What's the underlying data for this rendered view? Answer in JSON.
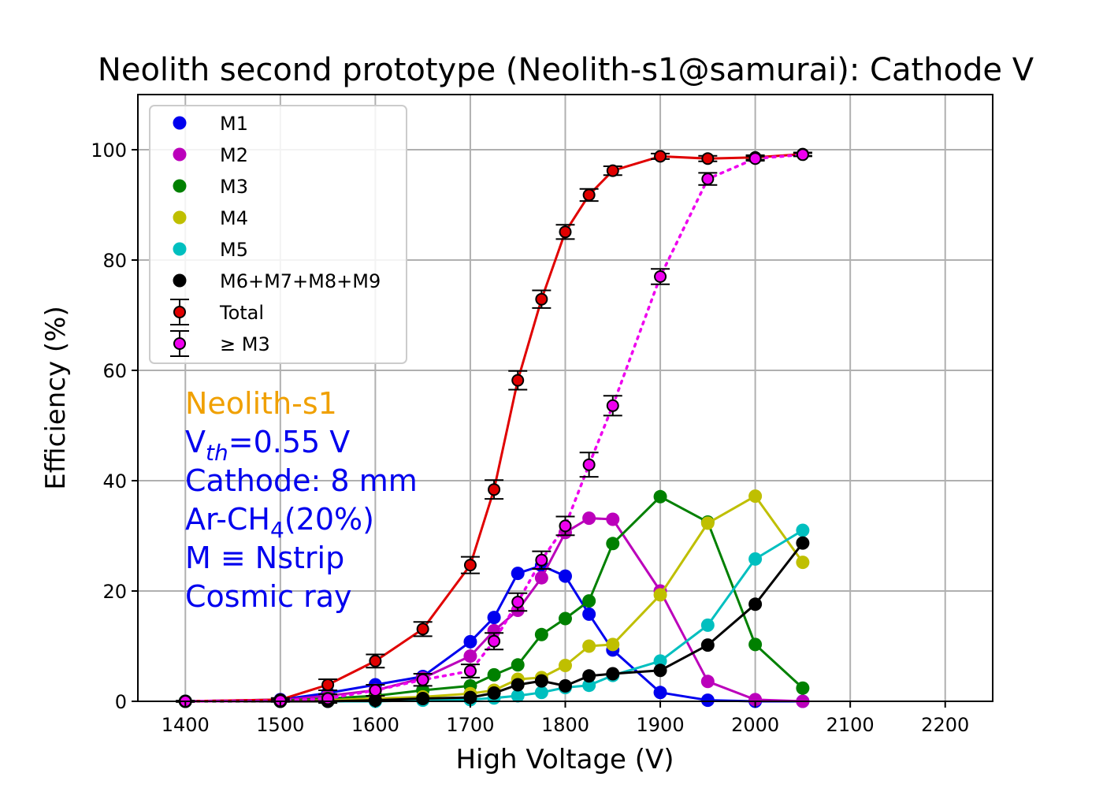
{
  "chart_data": {
    "type": "line",
    "title": "Neolith second prototype (Neolith-s1@samurai): Cathode V",
    "xlabel": "High Voltage (V)",
    "ylabel": "Efficiency (%)",
    "xlim": [
      1350,
      2250
    ],
    "ylim": [
      0,
      110
    ],
    "xticks": [
      1400,
      1500,
      1600,
      1700,
      1800,
      1900,
      2000,
      2100,
      2200
    ],
    "yticks": [
      0,
      20,
      40,
      60,
      80,
      100
    ],
    "grid": true,
    "legend_position": "upper-left",
    "x": [
      1400,
      1500,
      1550,
      1600,
      1650,
      1700,
      1725,
      1750,
      1775,
      1800,
      1825,
      1850,
      1900,
      1950,
      2000,
      2050
    ],
    "series": [
      {
        "name": "M1",
        "color": "#0000ee",
        "style": "solid",
        "errorbars": false,
        "values": [
          0,
          0.3,
          1.5,
          3.0,
          4.5,
          10.8,
          15.2,
          23.2,
          24.6,
          22.7,
          15.8,
          9.3,
          1.6,
          0.2,
          0,
          0
        ]
      },
      {
        "name": "M2",
        "color": "#bb00bb",
        "style": "solid",
        "errorbars": false,
        "values": [
          0,
          0.2,
          1.0,
          2.0,
          4.2,
          8.2,
          12.8,
          16.5,
          22.4,
          30.6,
          33.2,
          33.0,
          20.0,
          3.6,
          0.3,
          0
        ]
      },
      {
        "name": "M3",
        "color": "#008000",
        "style": "solid",
        "errorbars": false,
        "values": [
          0,
          0.1,
          0.5,
          1.0,
          2.0,
          2.8,
          4.8,
          6.6,
          12.1,
          15.0,
          18.2,
          28.6,
          37.1,
          32.5,
          10.3,
          2.4
        ]
      },
      {
        "name": "M4",
        "color": "#bfbf00",
        "style": "solid",
        "errorbars": false,
        "values": [
          0,
          0,
          0.2,
          0.5,
          0.8,
          1.4,
          2.0,
          4.0,
          4.3,
          6.5,
          10.0,
          10.3,
          19.3,
          32.3,
          37.2,
          25.2
        ]
      },
      {
        "name": "M5",
        "color": "#00bfbf",
        "style": "solid",
        "errorbars": false,
        "values": [
          0,
          0,
          0,
          0,
          0.2,
          0.3,
          0.6,
          1.0,
          1.6,
          2.5,
          2.9,
          4.7,
          7.3,
          13.8,
          25.8,
          31.0
        ]
      },
      {
        "name": "M6+M7+M8+M9",
        "color": "#000000",
        "style": "solid",
        "errorbars": false,
        "values": [
          0,
          0,
          0,
          0.2,
          0.5,
          0.7,
          1.5,
          3.0,
          3.7,
          2.8,
          4.6,
          5.0,
          5.6,
          10.2,
          17.6,
          28.7
        ]
      },
      {
        "name": "Total",
        "color": "#e00000",
        "style": "solid",
        "errorbars": true,
        "values": [
          0,
          0.3,
          3.0,
          7.3,
          13.1,
          24.7,
          38.4,
          58.2,
          72.9,
          85.1,
          91.8,
          96.2,
          98.8,
          98.4,
          98.6,
          99.2
        ],
        "errors": [
          0.1,
          0.3,
          1.0,
          1.2,
          1.3,
          1.5,
          1.7,
          1.7,
          1.6,
          1.3,
          1.1,
          0.8,
          0.5,
          0.5,
          0.4,
          0.3
        ]
      },
      {
        "name": "≥M3",
        "color": "#ee00ee",
        "style": "dotted",
        "errorbars": true,
        "values": [
          0,
          0.1,
          0.5,
          2.0,
          3.9,
          5.5,
          10.9,
          18.0,
          25.6,
          31.8,
          42.9,
          53.6,
          77.0,
          94.7,
          98.4,
          99.1
        ],
        "errors": [
          0.1,
          0.2,
          0.8,
          1.0,
          1.1,
          1.2,
          1.5,
          1.6,
          1.6,
          1.7,
          2.2,
          1.8,
          1.4,
          1.1,
          0.4,
          0.3
        ]
      }
    ],
    "annotation": {
      "lines": [
        {
          "text": "Neolith-s1",
          "color": "#f0a000"
        },
        {
          "text": "V",
          "sub": "th",
          "rest": "=0.55 V",
          "color": "#0000ee"
        },
        {
          "text": "Cathode: 8 mm",
          "color": "#0000ee"
        },
        {
          "text": "Ar-CH",
          "sub": "4",
          "rest": "(20%)",
          "color": "#0000ee"
        },
        {
          "text": "M ≡ Nstrip",
          "color": "#0000ee"
        },
        {
          "text": "Cosmic ray",
          "color": "#0000ee"
        }
      ]
    }
  }
}
